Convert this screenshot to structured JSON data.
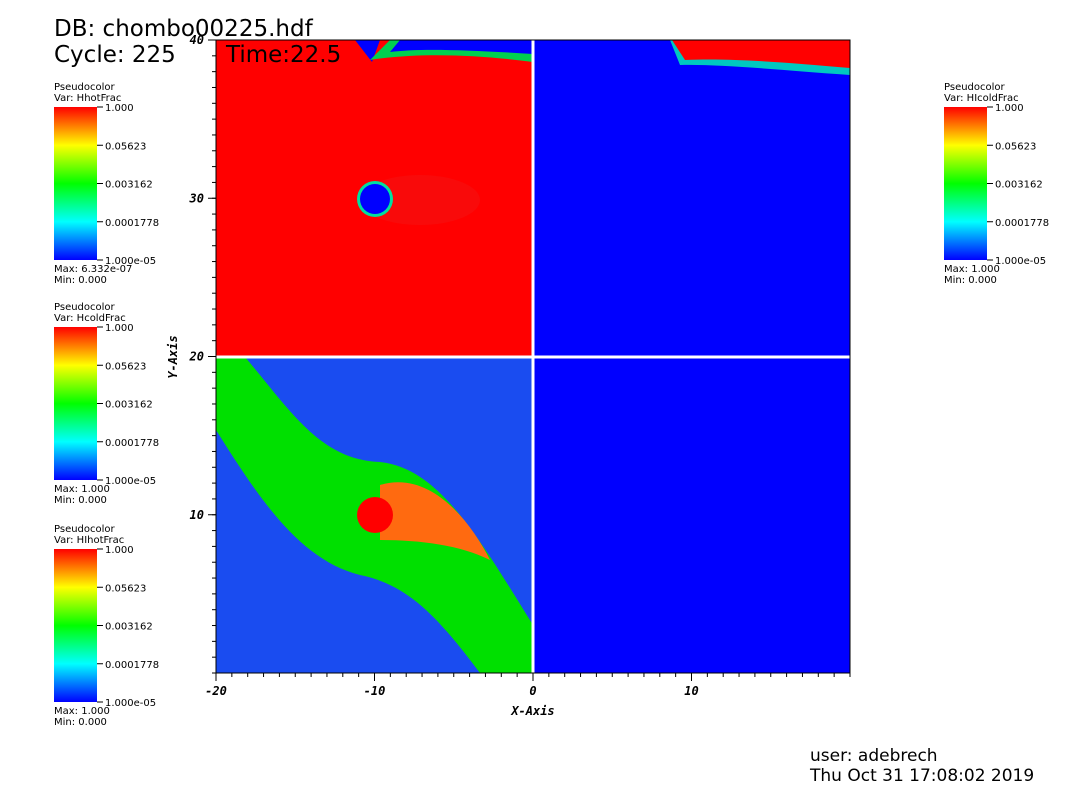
{
  "header": {
    "db": "DB: chombo00225.hdf",
    "cycle": "Cycle: 225",
    "time": "Time:22.5"
  },
  "axes": {
    "x_label": "X-Axis",
    "y_label": "Y-Axis",
    "xlim": [
      -20,
      20
    ],
    "xticks": [
      -20,
      -10,
      0,
      10
    ],
    "ylim": [
      0,
      40
    ],
    "yticks": [
      10,
      20,
      30,
      40
    ]
  },
  "legends": [
    {
      "kind": "Pseudocolor",
      "var": "Var: HhotFrac",
      "ticks": [
        "1.000",
        "0.05623",
        "0.003162",
        "0.0001778",
        "1.000e-05"
      ],
      "max": "Max:  6.332e-07",
      "min": "Min:  0.000"
    },
    {
      "kind": "Pseudocolor",
      "var": "Var: HcoldFrac",
      "ticks": [
        "1.000",
        "0.05623",
        "0.003162",
        "0.0001778",
        "1.000e-05"
      ],
      "max": "Max:  1.000",
      "min": "Min:  0.000"
    },
    {
      "kind": "Pseudocolor",
      "var": "Var: HIhotFrac",
      "ticks": [
        "1.000",
        "0.05623",
        "0.003162",
        "0.0001778",
        "1.000e-05"
      ],
      "max": "Max:  1.000",
      "min": "Min:  0.000"
    },
    {
      "kind": "Pseudocolor",
      "var": "Var: HIcoldFrac",
      "ticks": [
        "1.000",
        "0.05623",
        "0.003162",
        "0.0001778",
        "1.000e-05"
      ],
      "max": "Max:  1.000",
      "min": "Min:  0.000"
    }
  ],
  "footer": {
    "user": "user: adebrech",
    "date": "Thu Oct 31 17:08:02 2019"
  }
}
